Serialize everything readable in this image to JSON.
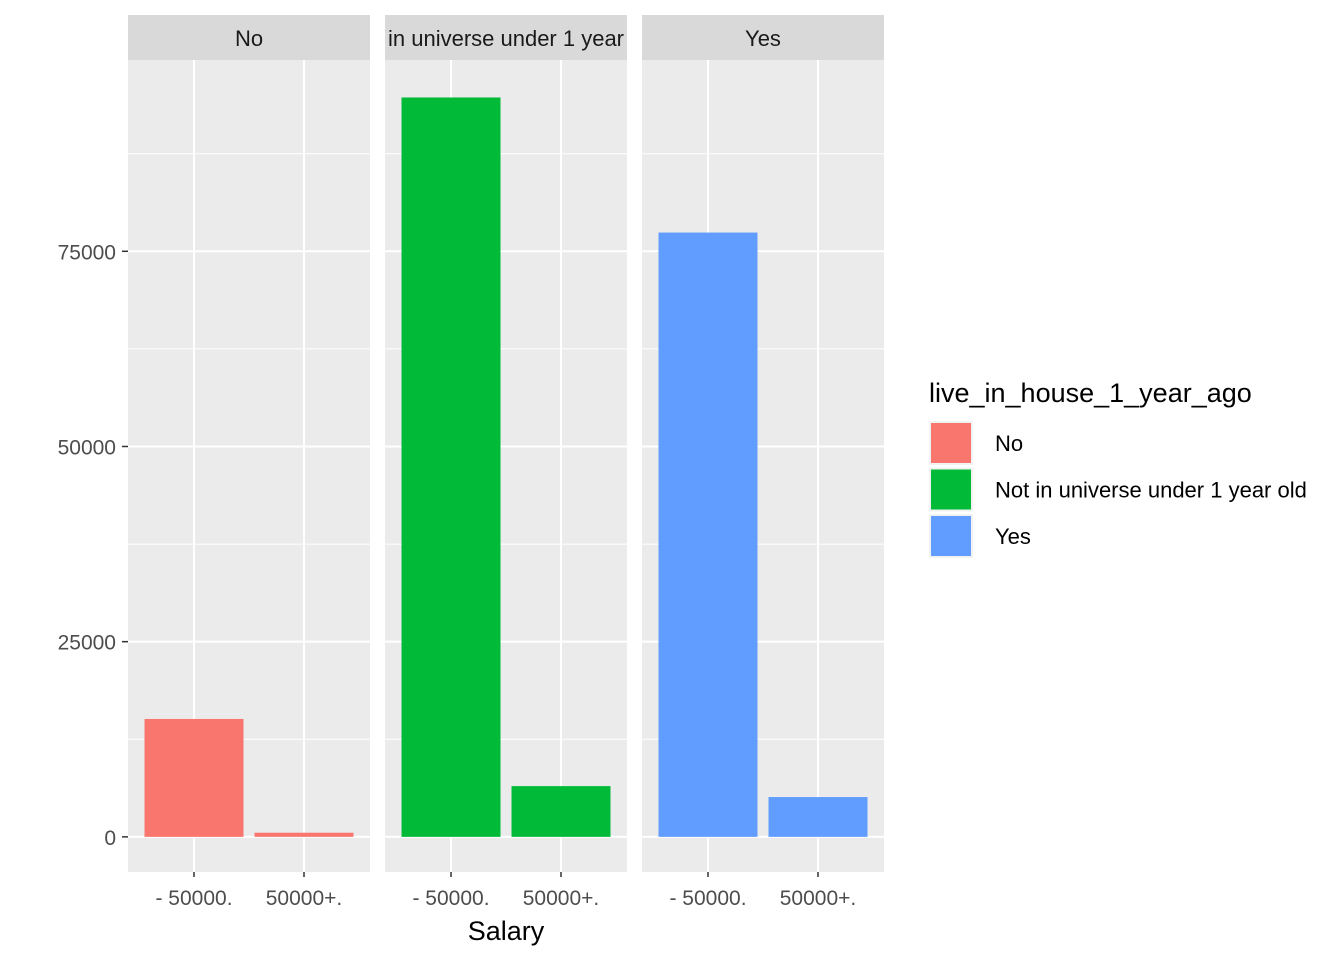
{
  "chart_data": {
    "type": "bar",
    "faceted_by": "live_in_house_1_year_ago",
    "xlabel": "Salary",
    "ylabel": "",
    "categories": [
      "- 50000.",
      "50000+."
    ],
    "yticks": [
      0,
      25000,
      50000,
      75000
    ],
    "ylim": [
      -4500,
      99500
    ],
    "facets": [
      {
        "strip": "No",
        "strip_visible": "No",
        "color": "#F8766D",
        "values": [
          15100,
          530
        ]
      },
      {
        "strip": "Not in universe under 1 year old",
        "strip_visible": "in universe under 1 year",
        "color": "#00BA38",
        "values": [
          94700,
          6500
        ]
      },
      {
        "strip": "Yes",
        "strip_visible": "Yes",
        "color": "#619CFF",
        "values": [
          77400,
          5100
        ]
      }
    ],
    "legend": {
      "title": "live_in_house_1_year_ago",
      "position": "right",
      "items": [
        {
          "label": "No",
          "color": "#F8766D"
        },
        {
          "label": "Not in universe under 1 year old",
          "color": "#00BA38"
        },
        {
          "label": "Yes",
          "color": "#619CFF"
        }
      ]
    },
    "grid": true
  }
}
